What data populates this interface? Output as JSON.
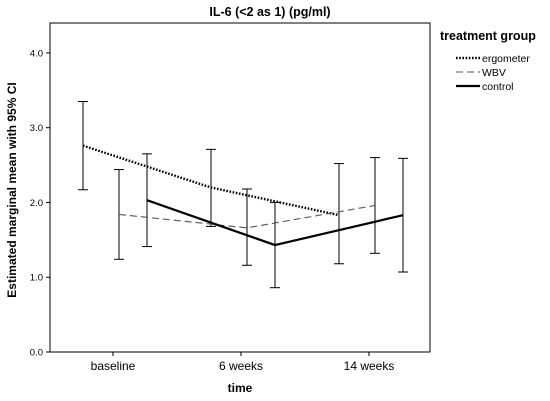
{
  "chart_data": {
    "type": "line",
    "title": "IL-6 (<2 as 1) (pg/ml)",
    "xlabel": "time",
    "ylabel": "Estimated marginal mean with 95% CI",
    "categories": [
      "baseline",
      "6 weeks",
      "14 weeks"
    ],
    "ylim": [
      0.0,
      4.4
    ],
    "yticks": [
      0.0,
      1.0,
      2.0,
      3.0,
      4.0
    ],
    "ytick_labels": [
      "0.0",
      "1.0",
      "2.0",
      "3.0",
      "4.0"
    ],
    "grid": false,
    "legend": {
      "title": "treatment group",
      "placement": "right-outside"
    },
    "series": [
      {
        "name": "ergometer",
        "line_style": "dotted",
        "color": "#000000",
        "values": [
          2.76,
          2.2,
          1.83
        ],
        "ci_lower": [
          2.17,
          1.68,
          1.18
        ],
        "ci_upper": [
          3.35,
          2.71,
          2.52
        ]
      },
      {
        "name": "WBV",
        "line_style": "dashed",
        "color": "#555555",
        "values": [
          1.84,
          1.66,
          1.96
        ],
        "ci_lower": [
          1.24,
          1.16,
          1.32
        ],
        "ci_upper": [
          2.44,
          2.18,
          2.6
        ]
      },
      {
        "name": "control",
        "line_style": "solid",
        "color": "#000000",
        "values": [
          2.03,
          1.43,
          1.83
        ],
        "ci_lower": [
          1.41,
          0.86,
          1.07
        ],
        "ci_upper": [
          2.65,
          2.0,
          2.59
        ]
      }
    ]
  }
}
